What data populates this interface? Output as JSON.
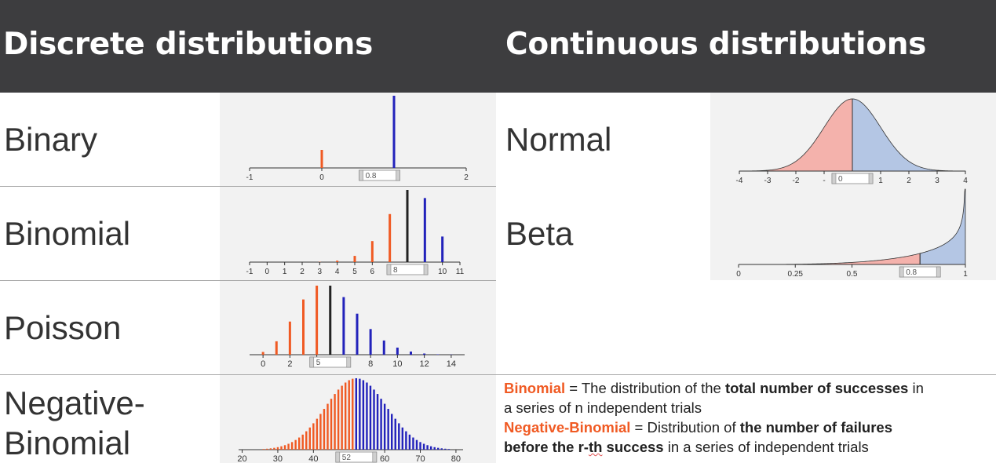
{
  "header": {
    "discrete_title": "Discrete distributions",
    "continuous_title": "Continuous distributions"
  },
  "discrete": [
    {
      "label": "Binary"
    },
    {
      "label": "Binomial"
    },
    {
      "label": "Poisson"
    },
    {
      "label_line1": "Negative-",
      "label_line2": "Binomial"
    }
  ],
  "continuous": [
    {
      "label": "Normal"
    },
    {
      "label": "Beta"
    }
  ],
  "colors": {
    "header_bg": "#3d3d3f",
    "left": "#f05a23",
    "right": "#2222bb",
    "mode": "#222222",
    "normal_left": "#f4b2ac",
    "normal_right": "#b4c6e4",
    "highlight": "#f05a23"
  },
  "chart_data": [
    {
      "name": "binary",
      "type": "bar",
      "x": [
        0,
        1
      ],
      "values": [
        0.2,
        0.8
      ],
      "colors": [
        "left",
        "right"
      ],
      "xlim": [
        -1,
        2
      ],
      "ticks": [
        {
          "v": -1,
          "t": "-1"
        },
        {
          "v": 0,
          "t": "0"
        },
        {
          "v": 2,
          "t": "2"
        }
      ],
      "marker": {
        "v": 0.8,
        "text": "0.8"
      }
    },
    {
      "name": "binomial",
      "type": "bar",
      "x": [
        0,
        1,
        2,
        3,
        4,
        5,
        6,
        7,
        8,
        9,
        10
      ],
      "values": [
        0.0,
        0.0,
        0.0,
        0.001,
        0.006,
        0.026,
        0.088,
        0.201,
        0.302,
        0.268,
        0.107
      ],
      "colors": [
        "left",
        "left",
        "left",
        "left",
        "left",
        "left",
        "left",
        "left",
        "mode",
        "right",
        "right"
      ],
      "xlim": [
        -1,
        11
      ],
      "ticks": [
        {
          "v": -1,
          "t": "-1"
        },
        {
          "v": 0,
          "t": "0"
        },
        {
          "v": 1,
          "t": "1"
        },
        {
          "v": 2,
          "t": "2"
        },
        {
          "v": 3,
          "t": "3"
        },
        {
          "v": 4,
          "t": "4"
        },
        {
          "v": 5,
          "t": "5"
        },
        {
          "v": 6,
          "t": "6"
        },
        {
          "v": 10,
          "t": "10"
        },
        {
          "v": 11,
          "t": "11"
        }
      ],
      "marker": {
        "v": 8,
        "text": "8"
      }
    },
    {
      "name": "poisson",
      "type": "bar",
      "x": [
        0,
        1,
        2,
        3,
        4,
        5,
        6,
        7,
        8,
        9,
        10,
        11,
        12,
        13,
        14
      ],
      "values": [
        0.007,
        0.034,
        0.084,
        0.14,
        0.175,
        0.175,
        0.146,
        0.104,
        0.065,
        0.036,
        0.018,
        0.008,
        0.003,
        0.001,
        0.0005
      ],
      "colors": [
        "left",
        "left",
        "left",
        "left",
        "left",
        "mode",
        "right",
        "right",
        "right",
        "right",
        "right",
        "right",
        "right",
        "right",
        "right"
      ],
      "xlim": [
        -1,
        15
      ],
      "ticks": [
        {
          "v": 0,
          "t": "0"
        },
        {
          "v": 2,
          "t": "2"
        },
        {
          "v": 4,
          "t": "4"
        },
        {
          "v": 8,
          "t": "8"
        },
        {
          "v": 10,
          "t": "10"
        },
        {
          "v": 12,
          "t": "12"
        },
        {
          "v": 14,
          "t": "14"
        }
      ],
      "marker": {
        "v": 5,
        "text": "5"
      }
    },
    {
      "name": "negative-binomial",
      "type": "bar",
      "x_start": 20,
      "x_end": 80,
      "mean": 52,
      "sd": 8.5,
      "split": 52,
      "xlim": [
        19,
        82
      ],
      "ticks": [
        {
          "v": 20,
          "t": "20"
        },
        {
          "v": 30,
          "t": "30"
        },
        {
          "v": 40,
          "t": "40"
        },
        {
          "v": 60,
          "t": "60"
        },
        {
          "v": 70,
          "t": "70"
        },
        {
          "v": 80,
          "t": "80"
        }
      ],
      "marker": {
        "v": 52,
        "text": "52"
      }
    },
    {
      "name": "normal",
      "type": "area",
      "mean": 0,
      "sd": 1,
      "split": 0,
      "xlim": [
        -4,
        4
      ],
      "ticks": [
        {
          "v": -4,
          "t": "-4"
        },
        {
          "v": -3,
          "t": "-3"
        },
        {
          "v": -2,
          "t": "-2"
        },
        {
          "v": -1,
          "t": "-"
        },
        {
          "v": 1,
          "t": "1"
        },
        {
          "v": 2,
          "t": "2"
        },
        {
          "v": 3,
          "t": "3"
        },
        {
          "v": 4,
          "t": "4"
        }
      ],
      "marker": {
        "v": 0,
        "text": "0"
      }
    },
    {
      "name": "beta",
      "type": "area",
      "alpha": 4,
      "beta": 0.7,
      "split": 0.8,
      "xlim": [
        0,
        1
      ],
      "ticks": [
        {
          "v": 0,
          "t": "0"
        },
        {
          "v": 0.25,
          "t": "0.25"
        },
        {
          "v": 0.5,
          "t": "0.5"
        },
        {
          "v": 1,
          "t": "1"
        }
      ],
      "marker": {
        "v": 0.8,
        "text": "0.8"
      }
    }
  ],
  "note": {
    "binomial_term": "Binomial",
    "binomial_eq": " = The distribution of the ",
    "binomial_bold": "total number of successes",
    "binomial_rest1": " in",
    "binomial_rest2": "a series of n independent trials",
    "negbin_term": "Negative-Binomial",
    "negbin_eq": " = Distribution of ",
    "negbin_bold1": "the number of failures",
    "negbin_bold2a": "before the r-",
    "negbin_bold2b": "th",
    "negbin_bold2c": " success",
    "negbin_rest": " in a series of independent trials"
  }
}
